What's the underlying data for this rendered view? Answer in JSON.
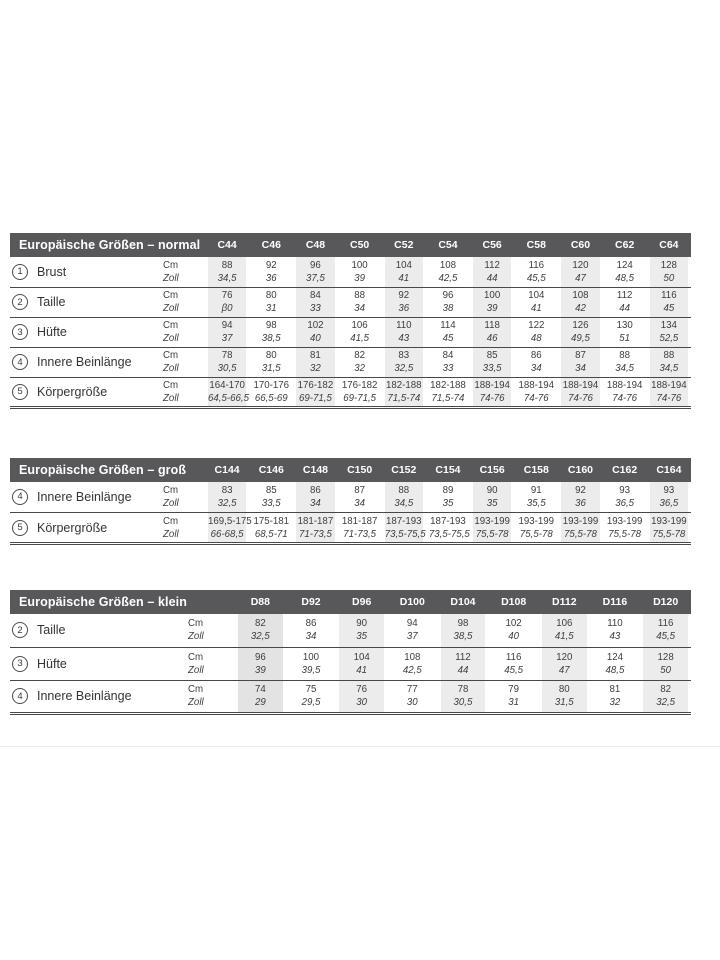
{
  "colors": {
    "header_bg": "#58585a",
    "header_text": "#ffffff",
    "band": "#ececec",
    "band_dark": "#e3e3e3",
    "ink": "#3d3d3f",
    "line": "#48484a"
  },
  "units": {
    "cm": "Cm",
    "zoll": "Zoll"
  },
  "tables": [
    {
      "id": "normal",
      "title": "Europäische Größen – normal",
      "columns": [
        "C44",
        "C46",
        "C48",
        "C50",
        "C52",
        "C54",
        "C56",
        "C58",
        "C60",
        "C62",
        "C64"
      ],
      "rows": [
        {
          "num": "1",
          "label": "Brust",
          "cm": [
            "88",
            "92",
            "96",
            "100",
            "104",
            "108",
            "112",
            "116",
            "120",
            "124",
            "128"
          ],
          "zoll": [
            "34,5",
            "36",
            "37,5",
            "39",
            "41",
            "42,5",
            "44",
            "45,5",
            "47",
            "48,5",
            "50"
          ]
        },
        {
          "num": "2",
          "label": "Taille",
          "cm": [
            "76",
            "80",
            "84",
            "88",
            "92",
            "96",
            "100",
            "104",
            "108",
            "112",
            "116"
          ],
          "zoll": [
            "β0",
            "31",
            "33",
            "34",
            "36",
            "38",
            "39",
            "41",
            "42",
            "44",
            "45"
          ]
        },
        {
          "num": "3",
          "label": "Hüfte",
          "cm": [
            "94",
            "98",
            "102",
            "106",
            "110",
            "114",
            "118",
            "122",
            "126",
            "130",
            "134"
          ],
          "zoll": [
            "37",
            "38,5",
            "40",
            "41,5",
            "43",
            "45",
            "46",
            "48",
            "49,5",
            "51",
            "52,5"
          ]
        },
        {
          "num": "4",
          "label": "Innere Beinlänge",
          "cm": [
            "78",
            "80",
            "81",
            "82",
            "83",
            "84",
            "85",
            "86",
            "87",
            "88",
            "88"
          ],
          "zoll": [
            "30,5",
            "31,5",
            "32",
            "32",
            "32,5",
            "33",
            "33,5",
            "34",
            "34",
            "34,5",
            "34,5"
          ]
        },
        {
          "num": "5",
          "label": "Körpergröße",
          "cm": [
            "164-170",
            "170-176",
            "176-182",
            "176-182",
            "182-188",
            "182-188",
            "188-194",
            "188-194",
            "188-194",
            "188-194",
            "188-194"
          ],
          "zoll": [
            "64,5-66,5",
            "66,5-69",
            "69-71,5",
            "69-71,5",
            "71,5-74",
            "71,5-74",
            "74-76",
            "74-76",
            "74-76",
            "74-76",
            "74-76"
          ]
        }
      ]
    },
    {
      "id": "gross",
      "title": "Europäische Größen – groß",
      "columns": [
        "C144",
        "C146",
        "C148",
        "C150",
        "C152",
        "C154",
        "C156",
        "C158",
        "C160",
        "C162",
        "C164"
      ],
      "rows": [
        {
          "num": "4",
          "label": "Innere Beinlänge",
          "cm": [
            "83",
            "85",
            "86",
            "87",
            "88",
            "89",
            "90",
            "91",
            "92",
            "93",
            "93"
          ],
          "zoll": [
            "32,5",
            "33,5",
            "34",
            "34",
            "34,5",
            "35",
            "35",
            "35,5",
            "36",
            "36,5",
            "36,5"
          ]
        },
        {
          "num": "5",
          "label": "Körpergröße",
          "cm": [
            "169,5-175",
            "175-181",
            "181-187",
            "181-187",
            "187-193",
            "187-193",
            "193-199",
            "193-199",
            "193-199",
            "193-199",
            "193-199"
          ],
          "zoll": [
            "66-68,5",
            "68,5-71",
            "71-73,5",
            "71-73,5",
            "73,5-75,5",
            "73,5-75,5",
            "75,5-78",
            "75,5-78",
            "75,5-78",
            "75,5-78",
            "75,5-78"
          ]
        }
      ]
    },
    {
      "id": "klein",
      "title": "Europäische Größen – klein",
      "shaded_first_column_darker": true,
      "columns": [
        "D88",
        "D92",
        "D96",
        "D100",
        "D104",
        "D108",
        "D112",
        "D116",
        "D120"
      ],
      "rows": [
        {
          "num": "2",
          "label": "Taille",
          "cm": [
            "82",
            "86",
            "90",
            "94",
            "98",
            "102",
            "106",
            "110",
            "116"
          ],
          "zoll": [
            "32,5",
            "34",
            "35",
            "37",
            "38,5",
            "40",
            "41,5",
            "43",
            "45,5"
          ]
        },
        {
          "num": "3",
          "label": "Hüfte",
          "cm": [
            "96",
            "100",
            "104",
            "108",
            "112",
            "116",
            "120",
            "124",
            "128"
          ],
          "zoll": [
            "39",
            "39,5",
            "41",
            "42,5",
            "44",
            "45,5",
            "47",
            "48,5",
            "50"
          ]
        },
        {
          "num": "4",
          "label": "Innere Beinlänge",
          "cm": [
            "74",
            "75",
            "76",
            "77",
            "78",
            "79",
            "80",
            "81",
            "82"
          ],
          "zoll": [
            "29",
            "29,5",
            "30",
            "30",
            "30,5",
            "31",
            "31,5",
            "32",
            "32,5"
          ]
        }
      ]
    }
  ]
}
